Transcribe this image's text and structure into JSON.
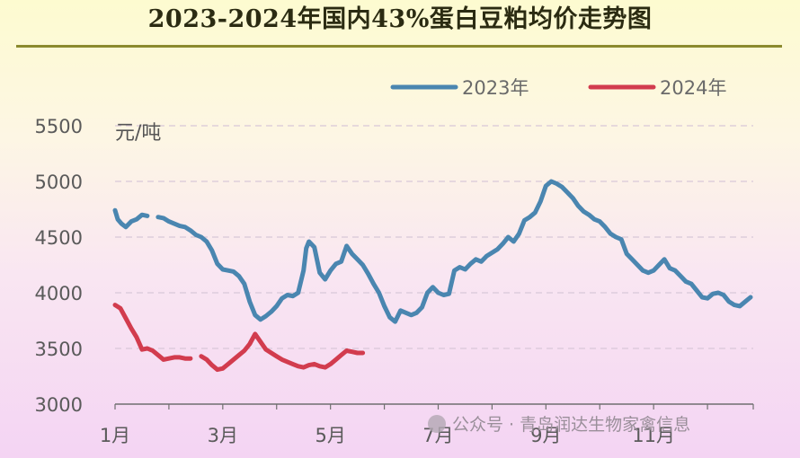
{
  "chart_data": {
    "type": "line",
    "title": "2023-2024年国内43%蛋白豆粕均价走势图",
    "ylabel": "元/吨",
    "ylim": [
      3000,
      5500
    ],
    "yticks": [
      "3000",
      "3500",
      "4000",
      "4500",
      "5000",
      "5500"
    ],
    "xticks": [
      {
        "label": "1月",
        "month": 1
      },
      {
        "label": "3月",
        "month": 3
      },
      {
        "label": "5月",
        "month": 5
      },
      {
        "label": "7月",
        "month": 7
      },
      {
        "label": "9月",
        "month": 9
      },
      {
        "label": "11月",
        "month": 11
      }
    ],
    "x_unit": "month",
    "grid": "horizontal-dashed",
    "legend_position": "top-right",
    "series": [
      {
        "name": "2023年",
        "color": "#4a86b0",
        "segments": [
          [
            [
              1.0,
              4740
            ],
            [
              1.05,
              4660
            ],
            [
              1.12,
              4620
            ],
            [
              1.2,
              4590
            ],
            [
              1.3,
              4640
            ],
            [
              1.4,
              4660
            ],
            [
              1.5,
              4700
            ],
            [
              1.6,
              4690
            ]
          ],
          [
            [
              1.8,
              4680
            ],
            [
              1.9,
              4670
            ],
            [
              2.0,
              4640
            ],
            [
              2.1,
              4620
            ],
            [
              2.2,
              4600
            ],
            [
              2.3,
              4590
            ],
            [
              2.4,
              4560
            ],
            [
              2.5,
              4520
            ],
            [
              2.6,
              4500
            ],
            [
              2.7,
              4460
            ],
            [
              2.8,
              4380
            ],
            [
              2.9,
              4260
            ],
            [
              3.0,
              4210
            ],
            [
              3.1,
              4200
            ],
            [
              3.2,
              4190
            ],
            [
              3.3,
              4150
            ],
            [
              3.4,
              4080
            ],
            [
              3.5,
              3920
            ],
            [
              3.6,
              3800
            ],
            [
              3.7,
              3760
            ],
            [
              3.8,
              3790
            ],
            [
              3.9,
              3830
            ],
            [
              4.0,
              3880
            ],
            [
              4.1,
              3950
            ],
            [
              4.2,
              3980
            ],
            [
              4.3,
              3970
            ],
            [
              4.4,
              4000
            ],
            [
              4.5,
              4200
            ],
            [
              4.55,
              4400
            ],
            [
              4.6,
              4460
            ],
            [
              4.7,
              4410
            ],
            [
              4.8,
              4180
            ],
            [
              4.9,
              4120
            ],
            [
              5.0,
              4200
            ],
            [
              5.1,
              4260
            ],
            [
              5.2,
              4280
            ],
            [
              5.3,
              4420
            ],
            [
              5.4,
              4350
            ],
            [
              5.5,
              4300
            ],
            [
              5.6,
              4250
            ],
            [
              5.7,
              4170
            ],
            [
              5.8,
              4080
            ],
            [
              5.9,
              4000
            ],
            [
              6.0,
              3880
            ],
            [
              6.1,
              3780
            ],
            [
              6.2,
              3740
            ],
            [
              6.3,
              3840
            ],
            [
              6.4,
              3820
            ],
            [
              6.5,
              3800
            ],
            [
              6.6,
              3820
            ],
            [
              6.7,
              3870
            ],
            [
              6.8,
              4000
            ],
            [
              6.9,
              4050
            ],
            [
              7.0,
              4000
            ],
            [
              7.1,
              3980
            ],
            [
              7.2,
              3990
            ],
            [
              7.3,
              4200
            ],
            [
              7.4,
              4230
            ],
            [
              7.5,
              4210
            ],
            [
              7.6,
              4260
            ],
            [
              7.7,
              4300
            ],
            [
              7.8,
              4280
            ],
            [
              7.9,
              4330
            ],
            [
              8.0,
              4360
            ],
            [
              8.1,
              4390
            ],
            [
              8.2,
              4440
            ],
            [
              8.3,
              4500
            ],
            [
              8.4,
              4460
            ],
            [
              8.5,
              4530
            ],
            [
              8.6,
              4650
            ],
            [
              8.7,
              4680
            ],
            [
              8.8,
              4720
            ],
            [
              8.9,
              4820
            ],
            [
              9.0,
              4960
            ],
            [
              9.1,
              5000
            ],
            [
              9.2,
              4980
            ],
            [
              9.3,
              4950
            ],
            [
              9.4,
              4900
            ],
            [
              9.5,
              4850
            ],
            [
              9.6,
              4780
            ],
            [
              9.7,
              4730
            ],
            [
              9.8,
              4700
            ],
            [
              9.9,
              4660
            ],
            [
              10.0,
              4640
            ],
            [
              10.1,
              4590
            ],
            [
              10.2,
              4530
            ],
            [
              10.3,
              4500
            ],
            [
              10.4,
              4480
            ],
            [
              10.5,
              4350
            ],
            [
              10.6,
              4300
            ],
            [
              10.7,
              4250
            ],
            [
              10.8,
              4200
            ],
            [
              10.9,
              4180
            ],
            [
              11.0,
              4200
            ],
            [
              11.1,
              4250
            ],
            [
              11.2,
              4300
            ],
            [
              11.3,
              4220
            ],
            [
              11.4,
              4200
            ],
            [
              11.5,
              4150
            ],
            [
              11.6,
              4100
            ],
            [
              11.7,
              4080
            ],
            [
              11.8,
              4020
            ],
            [
              11.9,
              3960
            ],
            [
              12.0,
              3950
            ],
            [
              12.1,
              3990
            ],
            [
              12.2,
              4000
            ],
            [
              12.3,
              3980
            ],
            [
              12.4,
              3920
            ],
            [
              12.5,
              3890
            ],
            [
              12.6,
              3880
            ],
            [
              12.7,
              3920
            ],
            [
              12.8,
              3960
            ]
          ]
        ]
      },
      {
        "name": "2024年",
        "color": "#d23c4e",
        "segments": [
          [
            [
              1.0,
              3890
            ],
            [
              1.1,
              3860
            ],
            [
              1.2,
              3770
            ],
            [
              1.3,
              3680
            ],
            [
              1.4,
              3600
            ],
            [
              1.5,
              3490
            ],
            [
              1.6,
              3500
            ],
            [
              1.7,
              3480
            ],
            [
              1.8,
              3440
            ],
            [
              1.9,
              3400
            ],
            [
              2.0,
              3410
            ],
            [
              2.1,
              3420
            ],
            [
              2.2,
              3420
            ],
            [
              2.3,
              3410
            ],
            [
              2.4,
              3410
            ]
          ],
          [
            [
              2.6,
              3430
            ],
            [
              2.7,
              3400
            ],
            [
              2.8,
              3350
            ],
            [
              2.9,
              3310
            ],
            [
              3.0,
              3320
            ],
            [
              3.1,
              3360
            ],
            [
              3.2,
              3400
            ],
            [
              3.3,
              3440
            ],
            [
              3.4,
              3480
            ],
            [
              3.5,
              3540
            ],
            [
              3.6,
              3630
            ],
            [
              3.7,
              3560
            ],
            [
              3.8,
              3490
            ],
            [
              3.9,
              3460
            ],
            [
              4.0,
              3430
            ],
            [
              4.1,
              3400
            ],
            [
              4.2,
              3380
            ],
            [
              4.3,
              3360
            ],
            [
              4.4,
              3340
            ],
            [
              4.5,
              3330
            ],
            [
              4.6,
              3350
            ],
            [
              4.7,
              3360
            ],
            [
              4.8,
              3340
            ],
            [
              4.9,
              3330
            ],
            [
              5.0,
              3360
            ],
            [
              5.1,
              3400
            ],
            [
              5.2,
              3440
            ],
            [
              5.3,
              3480
            ],
            [
              5.4,
              3470
            ],
            [
              5.5,
              3460
            ],
            [
              5.6,
              3460
            ]
          ]
        ]
      }
    ]
  },
  "watermark": "公众号 · 青岛润达生物家禽信息"
}
